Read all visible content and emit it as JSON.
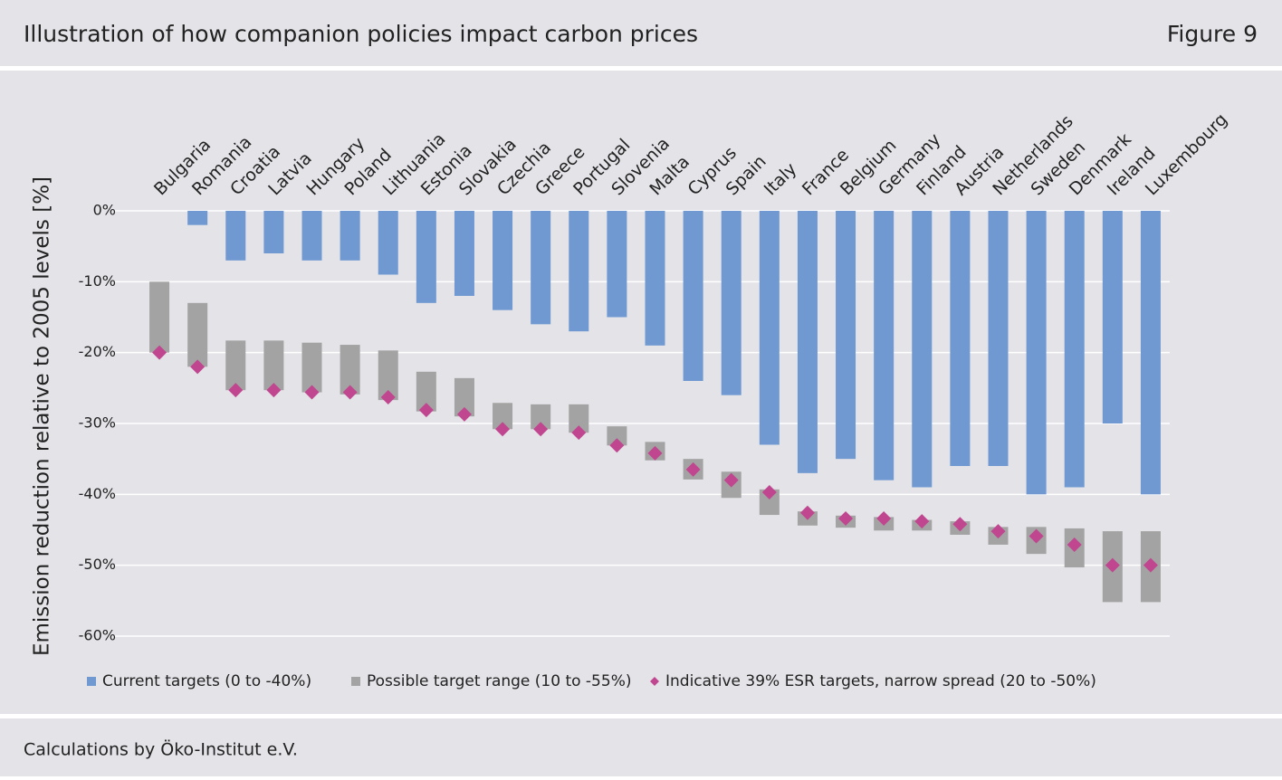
{
  "header": {
    "title": "Illustration of how companion policies impact carbon prices",
    "figure": "Figure 9"
  },
  "footer": {
    "source": "Calculations by Öko-Institut e.V."
  },
  "chart_data": {
    "type": "bar",
    "ylabel": "Emission reduction relative to 2005 levels [%]",
    "categories": [
      "Bulgaria",
      "Romania",
      "Croatia",
      "Latvia",
      "Hungary",
      "Poland",
      "Lithuania",
      "Estonia",
      "Slovakia",
      "Czechia",
      "Greece",
      "Portugal",
      "Slovenia",
      "Malta",
      "Cyprus",
      "Spain",
      "Italy",
      "France",
      "Belgium",
      "Germany",
      "Finland",
      "Austria",
      "Netherlands",
      "Sweden",
      "Denmark",
      "Ireland",
      "Luxembourg"
    ],
    "series": [
      {
        "name": "Current targets (0 to -40%)",
        "color": "#7099d2",
        "kind": "bar",
        "values": [
          0,
          -2,
          -7,
          -6,
          -7,
          -7,
          -9,
          -13,
          -12,
          -14,
          -16,
          -17,
          -15,
          -19,
          -24,
          -26,
          -33,
          -37,
          -35,
          -38,
          -39,
          -36,
          -36,
          -40,
          -39,
          -30,
          -40
        ]
      },
      {
        "name": "Possible target range (10 to -55%)",
        "color": "#a3a3a3",
        "kind": "range",
        "values": [
          [
            -10,
            -20
          ],
          [
            -13,
            -22
          ],
          [
            -18.3,
            -25.3
          ],
          [
            -18.3,
            -25.3
          ],
          [
            -18.6,
            -25.6
          ],
          [
            -18.9,
            -25.9
          ],
          [
            -19.7,
            -26.7
          ],
          [
            -22.7,
            -28.3
          ],
          [
            -23.6,
            -29
          ],
          [
            -27.1,
            -30.8
          ],
          [
            -27.3,
            -30.8
          ],
          [
            -27.3,
            -31.3
          ],
          [
            -30.4,
            -33.1
          ],
          [
            -32.6,
            -35.2
          ],
          [
            -35,
            -37.9
          ],
          [
            -36.8,
            -40.5
          ],
          [
            -39.3,
            -42.9
          ],
          [
            -42.4,
            -44.4
          ],
          [
            -43,
            -44.7
          ],
          [
            -43.2,
            -45.1
          ],
          [
            -43.6,
            -45.1
          ],
          [
            -43.8,
            -45.7
          ],
          [
            -44.6,
            -47.1
          ],
          [
            -44.6,
            -48.4
          ],
          [
            -44.8,
            -50.3
          ],
          [
            -45.2,
            -55.2
          ],
          [
            -45.2,
            -55.2
          ]
        ]
      },
      {
        "name": "Indicative 39% ESR targets, narrow spread (20 to -50%)",
        "color": "#c0478f",
        "kind": "marker",
        "values": [
          -20,
          -22,
          -25.3,
          -25.3,
          -25.6,
          -25.6,
          -26.3,
          -28.1,
          -28.7,
          -30.8,
          -30.8,
          -31.3,
          -33.1,
          -34.2,
          -36.5,
          -38,
          -39.7,
          -42.6,
          -43.4,
          -43.4,
          -43.8,
          -44.2,
          -45.2,
          -45.9,
          -47.1,
          -50,
          -50
        ]
      }
    ],
    "ylim": [
      -60,
      0
    ],
    "yticks": [
      {
        "value": 0,
        "label": "0%"
      },
      {
        "value": -10,
        "label": "-10%"
      },
      {
        "value": -20,
        "label": "-20%"
      },
      {
        "value": -30,
        "label": "-30%"
      },
      {
        "value": -40,
        "label": "-40%"
      },
      {
        "value": -50,
        "label": "-50%"
      },
      {
        "value": -60,
        "label": "-60%"
      }
    ],
    "grid": true
  }
}
